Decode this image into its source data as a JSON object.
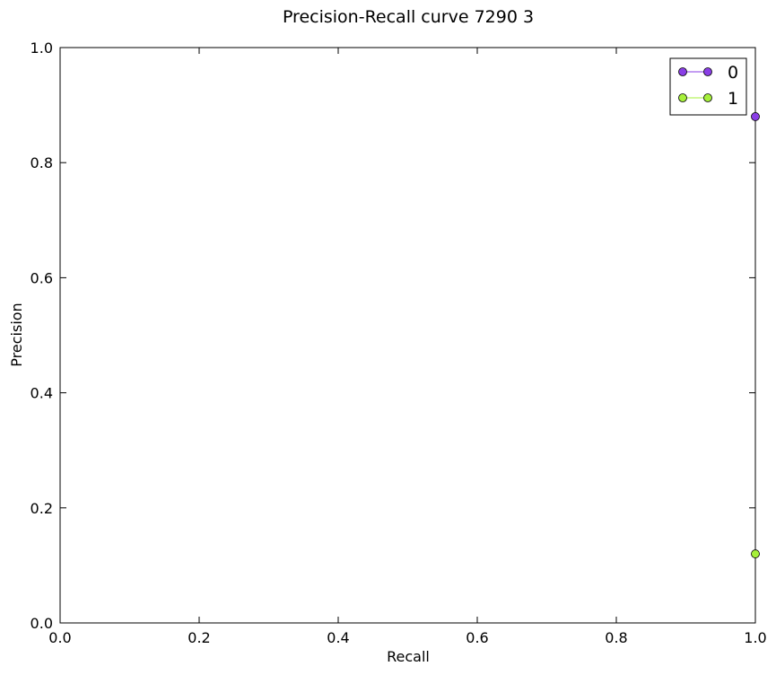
{
  "chart_data": {
    "type": "line",
    "title": "Precision-Recall curve 7290 3",
    "xlabel": "Recall",
    "ylabel": "Precision",
    "xlim": [
      0.0,
      1.0
    ],
    "ylim": [
      0.0,
      1.0
    ],
    "xticks": [
      "0.0",
      "0.2",
      "0.4",
      "0.6",
      "0.8",
      "1.0"
    ],
    "yticks": [
      "0.0",
      "0.2",
      "0.4",
      "0.6",
      "0.8",
      "1.0"
    ],
    "grid": false,
    "legend_position": "top-right",
    "series": [
      {
        "name": "0",
        "color": "#8a3ee6",
        "x": [
          1.0
        ],
        "y": [
          0.88
        ]
      },
      {
        "name": "1",
        "color": "#a6f03a",
        "x": [
          1.0
        ],
        "y": [
          0.12
        ]
      }
    ]
  }
}
